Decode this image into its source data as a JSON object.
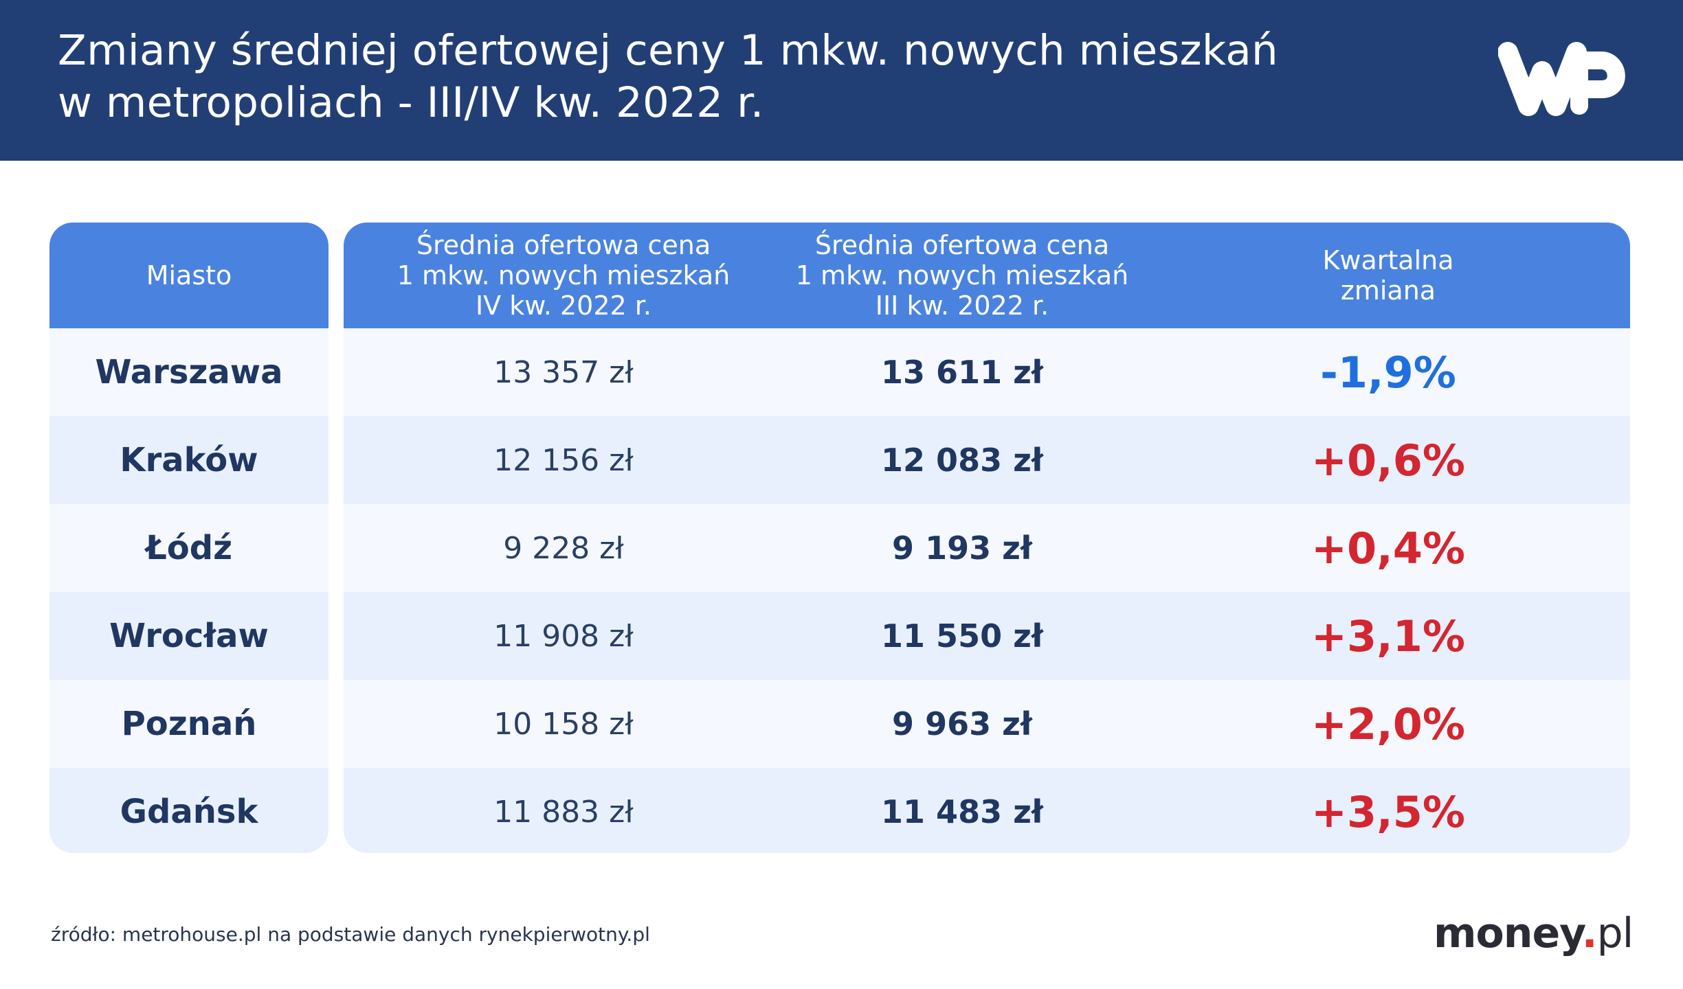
{
  "header": {
    "title_line1": "Zmiany średniej ofertowej ceny 1 mkw. nowych mieszkań",
    "title_line2": "w metropoliach - III/IV kw. 2022 r.",
    "logo": "wp-logo"
  },
  "colors": {
    "header_bg": "#223f75",
    "table_header_bg": "#4a83df",
    "negative_change": "#1f6fe0",
    "positive_change": "#d42630"
  },
  "chart_data": {
    "type": "table",
    "columns": [
      {
        "lines": [
          "Miasto"
        ]
      },
      {
        "lines": [
          "Średnia ofertowa cena",
          "1 mkw. nowych mieszkań",
          "IV kw. 2022 r."
        ]
      },
      {
        "lines": [
          "Średnia ofertowa cena",
          "1 mkw. nowych mieszkań",
          "III kw. 2022 r."
        ]
      },
      {
        "lines": [
          "Kwartalna",
          "zmiana"
        ]
      }
    ],
    "rows": [
      {
        "city": "Warszawa",
        "q4": "13 357 zł",
        "q3": "13 611 zł",
        "change": "-1,9%",
        "direction": "down"
      },
      {
        "city": "Kraków",
        "q4": "12 156 zł",
        "q3": "12 083 zł",
        "change": "+0,6%",
        "direction": "up"
      },
      {
        "city": "Łódź",
        "q4": "9 228 zł",
        "q3": "9 193 zł",
        "change": "+0,4%",
        "direction": "up"
      },
      {
        "city": "Wrocław",
        "q4": "11 908 zł",
        "q3": "11 550 zł",
        "change": "+3,1%",
        "direction": "up"
      },
      {
        "city": "Poznań",
        "q4": "10 158 zł",
        "q3": "9 963 zł",
        "change": "+2,0%",
        "direction": "up"
      },
      {
        "city": "Gdańsk",
        "q4": "11 883 zł",
        "q3": "11 483 zł",
        "change": "+3,5%",
        "direction": "up"
      }
    ]
  },
  "footer": {
    "source": "źródło: metrohouse.pl na podstawie danych rynekpierwotny.pl",
    "brand_main": "money",
    "brand_dot": ".",
    "brand_tld": "pl"
  }
}
